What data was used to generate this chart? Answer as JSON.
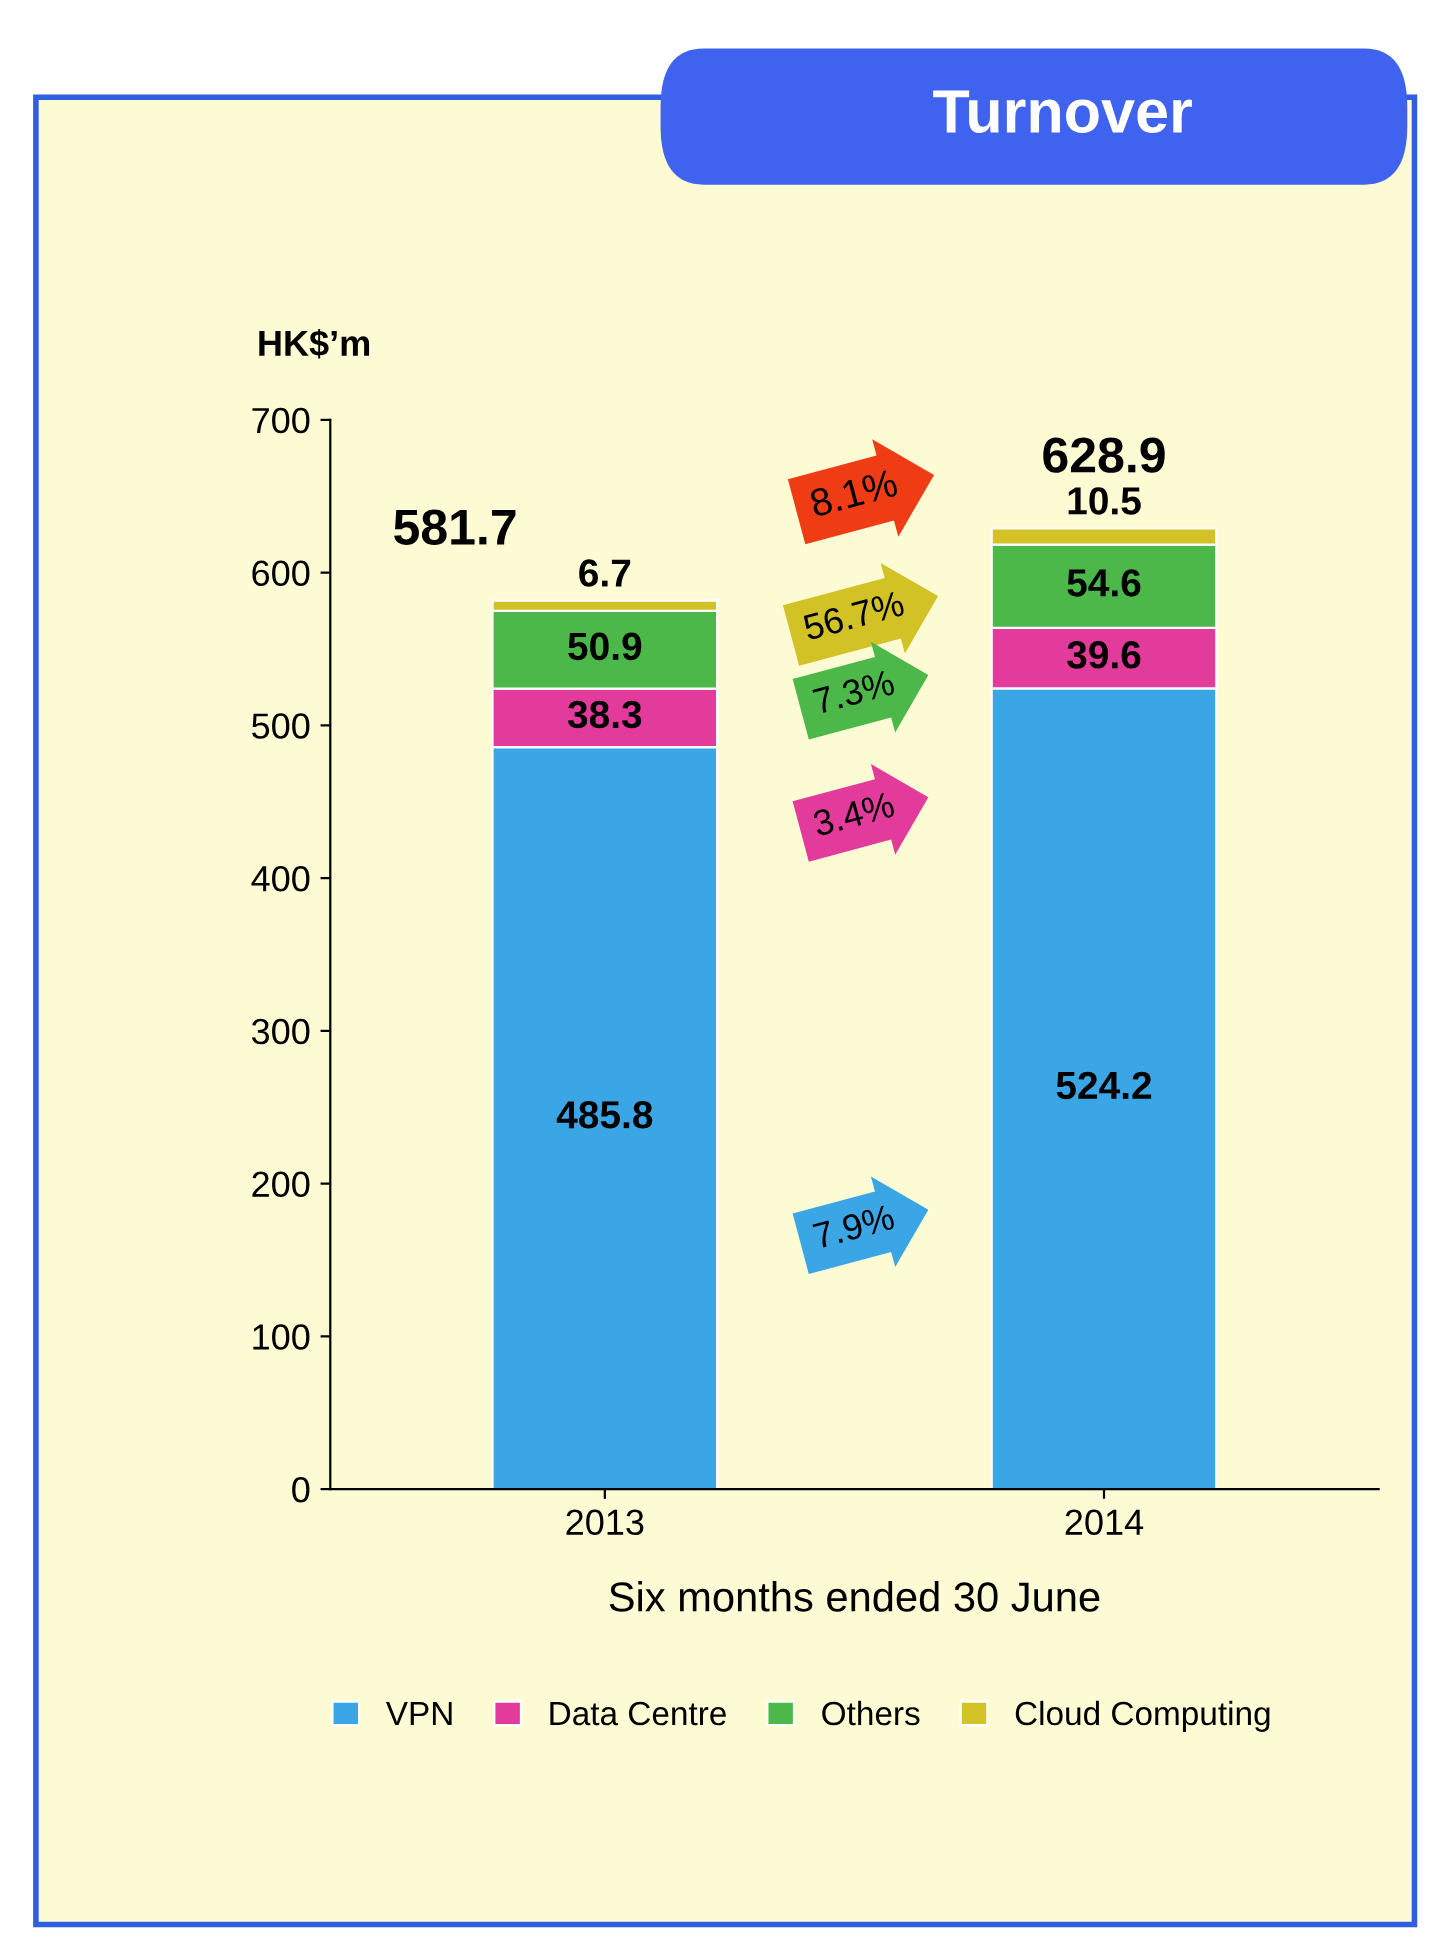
{
  "chart_data": {
    "type": "bar",
    "stacked": true,
    "title": "Turnover",
    "ylabel": "HK$’m",
    "xlabel": "Six months ended 30 June",
    "categories": [
      "2013",
      "2014"
    ],
    "series": [
      {
        "name": "VPN",
        "color": "#3aa6e6",
        "values": [
          485.8,
          524.2
        ]
      },
      {
        "name": "Data Centre",
        "color": "#e23b9c",
        "values": [
          38.3,
          39.6
        ]
      },
      {
        "name": "Others",
        "color": "#4db84a",
        "values": [
          50.9,
          54.6
        ]
      },
      {
        "name": "Cloud Computing",
        "color": "#d2c225",
        "values": [
          6.7,
          10.5
        ]
      }
    ],
    "totals": [
      "581.7",
      "628.9"
    ],
    "data_labels": true,
    "ylim": [
      0,
      700
    ],
    "yticks": [
      0,
      100,
      200,
      300,
      400,
      500,
      600,
      700
    ],
    "grid": false,
    "legend": "bottom",
    "annotations": [
      "8.1%",
      "56.7%",
      "7.3%",
      "3.4%",
      "7.9%"
    ]
  }
}
